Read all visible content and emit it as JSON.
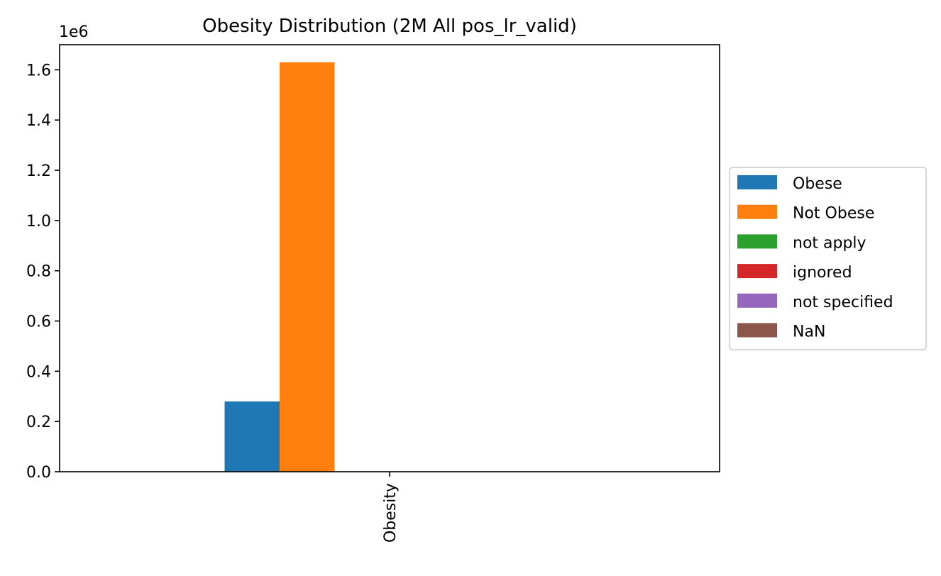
{
  "chart_data": {
    "type": "bar",
    "title": "Obesity Distribution (2M All pos_lr_valid)",
    "xlabel": "",
    "ylabel": "",
    "y_offset_label": "1e6",
    "y_scale_factor": 1000000,
    "ylim": [
      0,
      1700000
    ],
    "y_ticks": [
      0,
      200000,
      400000,
      600000,
      800000,
      1000000,
      1200000,
      1400000,
      1600000
    ],
    "y_tick_labels": [
      "0.0",
      "0.2",
      "0.4",
      "0.6",
      "0.8",
      "1.0",
      "1.2",
      "1.4",
      "1.6"
    ],
    "categories": [
      "Obesity"
    ],
    "x_tick_rotation": "vertical",
    "series": [
      {
        "name": "Obese",
        "color": "#1f77b4",
        "values": [
          280000
        ]
      },
      {
        "name": "Not Obese",
        "color": "#ff7f0e",
        "values": [
          1630000
        ]
      },
      {
        "name": "not apply",
        "color": "#2ca02c",
        "values": [
          0
        ]
      },
      {
        "name": "ignored",
        "color": "#d62728",
        "values": [
          0
        ]
      },
      {
        "name": "not specified",
        "color": "#9467bd",
        "values": [
          0
        ]
      },
      {
        "name": "NaN",
        "color": "#8c564b",
        "values": [
          0
        ]
      }
    ],
    "grid": false,
    "legend_position": "right, outside, vertically centered"
  }
}
